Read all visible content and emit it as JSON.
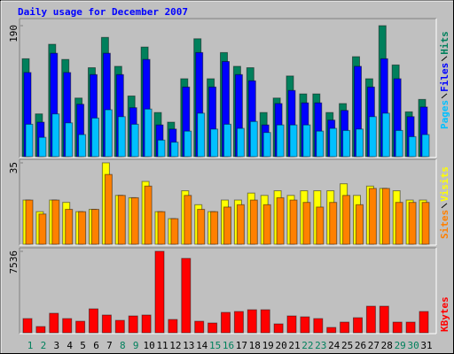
{
  "title": "Daily usage for December 2007",
  "chart_data": [
    {
      "type": "bar",
      "ylim": [
        0,
        190
      ],
      "yticks": [
        190
      ],
      "series": [
        {
          "name": "Hits",
          "color": "#00805c",
          "values": [
            142,
            62,
            163,
            141,
            85,
            129,
            173,
            131,
            88,
            159,
            64,
            50,
            113,
            171,
            113,
            151,
            131,
            129,
            64,
            85,
            117,
            91,
            91,
            64,
            77,
            145,
            113,
            190,
            133,
            65,
            83
          ]
        },
        {
          "name": "Files",
          "color": "#0000ff",
          "values": [
            122,
            50,
            150,
            122,
            76,
            119,
            150,
            119,
            71,
            141,
            46,
            40,
            101,
            151,
            101,
            138,
            119,
            110,
            46,
            77,
            96,
            78,
            78,
            53,
            67,
            131,
            101,
            142,
            113,
            58,
            72
          ]
        },
        {
          "name": "Pages",
          "color": "#00c0ff",
          "values": [
            47,
            28,
            62,
            49,
            32,
            56,
            68,
            58,
            47,
            69,
            24,
            21,
            37,
            63,
            40,
            47,
            41,
            51,
            35,
            46,
            46,
            46,
            37,
            41,
            38,
            40,
            58,
            63,
            38,
            29,
            32
          ]
        }
      ]
    },
    {
      "type": "bar",
      "ylim": [
        0,
        35
      ],
      "yticks": [
        35
      ],
      "series": [
        {
          "name": "Visits",
          "color": "#ffff00",
          "values": [
            19,
            14,
            19,
            18,
            14,
            15,
            35,
            21,
            20,
            27,
            14,
            11,
            23,
            17,
            14,
            19,
            19,
            22,
            21,
            23,
            21,
            23,
            23,
            23,
            26,
            21,
            25,
            24,
            23,
            19,
            19
          ]
        },
        {
          "name": "Sites",
          "color": "#ff8000",
          "values": [
            19,
            13,
            19,
            15,
            14,
            15,
            30,
            21,
            20,
            25,
            14,
            11,
            21,
            15,
            14,
            16,
            17,
            19,
            17,
            20,
            19,
            18,
            16,
            18,
            21,
            17,
            24,
            24,
            18,
            18,
            18
          ]
        }
      ]
    },
    {
      "type": "bar",
      "ylim": [
        0,
        7536
      ],
      "yticks": [
        7536
      ],
      "series": [
        {
          "name": "KBytes",
          "color": "#ff0000",
          "values": [
            1311,
            573,
            1802,
            1311,
            1065,
            2212,
            1638,
            1147,
            1556,
            1638,
            7536,
            1229,
            6881,
            1065,
            901,
            1884,
            1966,
            2130,
            2130,
            819,
            1556,
            1474,
            1311,
            491,
            983,
            1393,
            2457,
            2457,
            983,
            983,
            1966
          ]
        }
      ],
      "categories": [
        "1",
        "2",
        "3",
        "4",
        "5",
        "6",
        "7",
        "8",
        "9",
        "10",
        "11",
        "12",
        "13",
        "14",
        "15",
        "16",
        "17",
        "18",
        "19",
        "20",
        "21",
        "22",
        "23",
        "24",
        "25",
        "26",
        "27",
        "28",
        "29",
        "30",
        "31"
      ],
      "category_colors": [
        "#00805c",
        "#00805c",
        "#000000",
        "#000000",
        "#000000",
        "#000000",
        "#000000",
        "#00805c",
        "#00805c",
        "#000000",
        "#000000",
        "#000000",
        "#000000",
        "#000000",
        "#00805c",
        "#00805c",
        "#000000",
        "#000000",
        "#000000",
        "#000000",
        "#000000",
        "#00805c",
        "#00805c",
        "#000000",
        "#000000",
        "#000000",
        "#000000",
        "#000000",
        "#00805c",
        "#00805c",
        "#000000"
      ]
    }
  ]
}
